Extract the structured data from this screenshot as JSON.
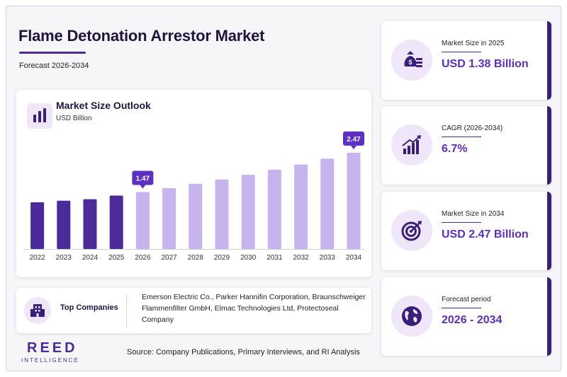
{
  "header": {
    "title": "Flame Detonation Arrestor Market",
    "subtitle": "Forecast 2026-2034"
  },
  "chart_card": {
    "title": "Market Size Outlook",
    "unit": "USD Billion"
  },
  "chart_data": {
    "type": "bar",
    "title": "Market Size Outlook",
    "ylabel": "USD Billion",
    "categories": [
      "2022",
      "2023",
      "2024",
      "2025",
      "2026",
      "2027",
      "2028",
      "2029",
      "2030",
      "2031",
      "2032",
      "2033",
      "2034"
    ],
    "values": [
      1.21,
      1.25,
      1.29,
      1.38,
      1.47,
      1.57,
      1.68,
      1.79,
      1.91,
      2.04,
      2.17,
      2.32,
      2.47
    ],
    "historical_color": "#4b2a9a",
    "forecast_color": "#c6b4ef",
    "forecast_start": "2026",
    "data_labels": [
      {
        "category": "2026",
        "text": "1.47"
      },
      {
        "category": "2034",
        "text": "2.47"
      }
    ],
    "label_color": "#5b2fc1",
    "grid": false,
    "legend": "none"
  },
  "companies": {
    "label": "Top Companies",
    "text": "Emerson Electric Co., Parker Hannifin Corporation, Braunschweiger Flammenfilter GmbH, Elmac Technologies Ltd, Protectoseal Company"
  },
  "kpis": [
    {
      "label": "Market Size in 2025",
      "value": "USD 1.38 Billion",
      "icon": "money-bag-icon"
    },
    {
      "label": "CAGR (2026-2034)",
      "value": "6.7%",
      "icon": "growth-chart-icon"
    },
    {
      "label": "Market Size in 2034",
      "value": "USD 2.47 Billion",
      "icon": "target-icon"
    },
    {
      "label": "Forecast period",
      "value": "2026 - 2034",
      "icon": "globe-icon"
    }
  ],
  "footer": {
    "logo_main": "REED",
    "logo_sub": "INTELLIGENCE",
    "source": "Source: Company Publications, Primary Interviews, and RI Analysis"
  }
}
